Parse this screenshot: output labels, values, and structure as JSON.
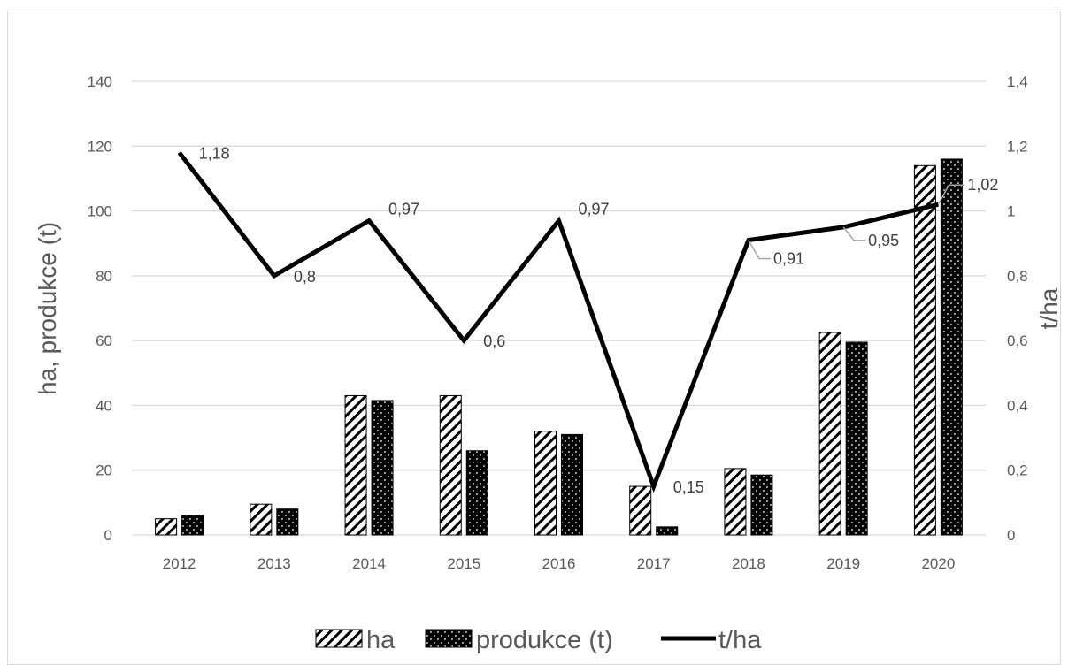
{
  "chart_data": {
    "type": "bar",
    "categories": [
      "2012",
      "2013",
      "2014",
      "2015",
      "2016",
      "2017",
      "2018",
      "2019",
      "2020"
    ],
    "series": [
      {
        "name": "ha",
        "type": "bar",
        "axis": "left",
        "pattern": "diagonal-hatch",
        "values": [
          5,
          9.5,
          43,
          43,
          32,
          15,
          20.5,
          62.5,
          114
        ]
      },
      {
        "name": "produkce (t)",
        "type": "bar",
        "axis": "left",
        "pattern": "dotted-black",
        "values": [
          6,
          8,
          41.5,
          26,
          31,
          2.5,
          18.5,
          59.5,
          116
        ]
      },
      {
        "name": "t/ha",
        "type": "line",
        "axis": "right",
        "color": "#000000",
        "values": [
          1.18,
          0.8,
          0.97,
          0.6,
          0.97,
          0.15,
          0.91,
          0.95,
          1.02
        ],
        "labels": [
          "1,18",
          "0,8",
          "0,97",
          "0,6",
          "0,97",
          "0,15",
          "0,91",
          "0,95",
          "1,02"
        ]
      }
    ],
    "ylabel": "ha, produkce (t)",
    "y2label": "t/ha",
    "ylim": [
      0,
      140
    ],
    "y2lim": [
      0,
      1.4
    ],
    "yticks": [
      "0",
      "20",
      "40",
      "60",
      "80",
      "100",
      "120",
      "140"
    ],
    "y2ticks": [
      "0",
      "0,2",
      "0,4",
      "0,6",
      "0,8",
      "1",
      "1,2",
      "1,4"
    ],
    "grid": true,
    "legend_position": "bottom",
    "colors": {
      "grid": "#d9d9d9",
      "text": "#595959",
      "bar": "#000000",
      "line": "#000000",
      "leader": "#a6a6a6"
    }
  }
}
